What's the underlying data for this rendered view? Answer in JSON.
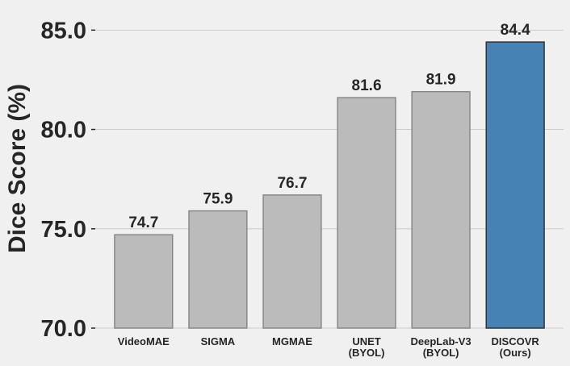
{
  "chart_data": {
    "type": "bar",
    "title": "",
    "xlabel": "",
    "ylabel": "Dice Score (%)",
    "ylim": [
      70,
      85.5
    ],
    "yticks": [
      "70.0",
      "75.0",
      "80.0",
      "85.0"
    ],
    "grid": true,
    "categories": [
      [
        "VideoMAE"
      ],
      [
        "SIGMA"
      ],
      [
        "MGMAE"
      ],
      [
        "UNET",
        "(BYOL)"
      ],
      [
        "DeepLab-V3",
        "(BYOL)"
      ],
      [
        "DISCOVR",
        "(Ours)"
      ]
    ],
    "values": [
      74.7,
      75.9,
      76.7,
      81.6,
      81.9,
      84.4
    ],
    "value_labels": [
      "74.7",
      "75.9",
      "76.7",
      "81.6",
      "81.9",
      "84.4"
    ],
    "colors": [
      "#bbbbbb",
      "#bbbbbb",
      "#bbbbbb",
      "#bbbbbb",
      "#bbbbbb",
      "#4682b4"
    ],
    "edge_colors": [
      "#888888",
      "#888888",
      "#888888",
      "#888888",
      "#888888",
      "#333333"
    ]
  }
}
